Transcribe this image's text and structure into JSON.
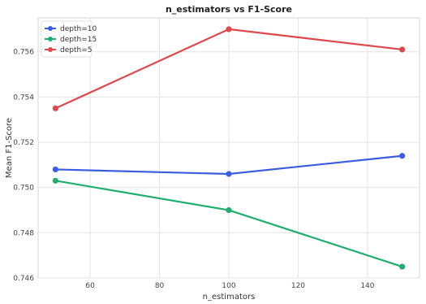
{
  "chart_data": {
    "type": "line",
    "title": "n_estimators vs F1-Score",
    "xlabel": "n_estimators",
    "ylabel": "Mean F1-Score",
    "xlim": [
      45,
      155
    ],
    "ylim": [
      0.746,
      0.7575
    ],
    "xticks": [
      60,
      80,
      100,
      120,
      140
    ],
    "yticks": [
      0.746,
      0.748,
      0.75,
      0.752,
      0.754,
      0.756
    ],
    "ytick_labels": [
      "0.746",
      "0.748",
      "0.750",
      "0.752",
      "0.754",
      "0.756"
    ],
    "grid": true,
    "legend_position": "top-left",
    "x": [
      50,
      100,
      150
    ],
    "series": [
      {
        "name": "depth=10",
        "color": "#3b5ee0",
        "values": [
          0.7508,
          0.7506,
          0.7514
        ]
      },
      {
        "name": "depth=15",
        "color": "#1fae6e",
        "values": [
          0.7503,
          0.749,
          0.7465
        ]
      },
      {
        "name": "depth=5",
        "color": "#e0474c",
        "values": [
          0.7535,
          0.757,
          0.7561
        ]
      }
    ]
  }
}
